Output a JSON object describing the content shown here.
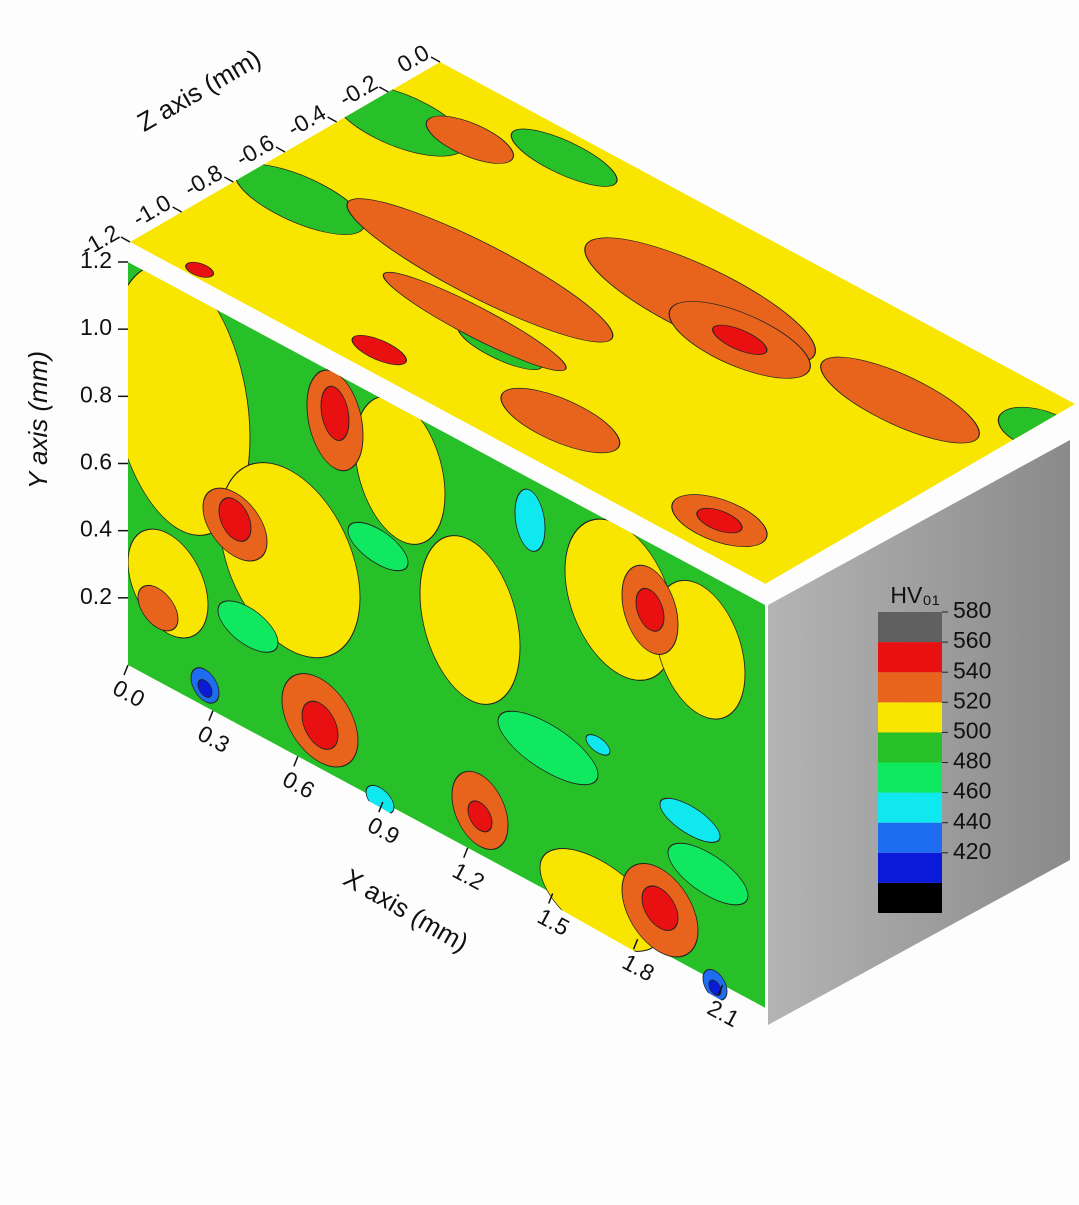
{
  "chart_data": {
    "type": "contour3d",
    "xlabel": "X axis (mm)",
    "ylabel": "Y axis (mm)",
    "zlabel": "Z axis (mm)",
    "xlim": [
      0,
      2.25
    ],
    "xticks": [
      {
        "value": 0,
        "label": "0.0"
      },
      0.3,
      0.6,
      0.9,
      1.2,
      1.5,
      1.8,
      2.1
    ],
    "ylim": [
      0,
      1.2
    ],
    "yticks": [
      0.2,
      0.4,
      0.6,
      0.8,
      {
        "value": 1,
        "label": "1.0"
      },
      1.2
    ],
    "zlim": [
      -1.2,
      0
    ],
    "zticks": [
      {
        "value": 0,
        "label": "0.0"
      },
      -0.2,
      -0.4,
      -0.6,
      -0.8,
      {
        "value": -1,
        "label": "-1.0"
      },
      -1.2
    ],
    "colorbar": {
      "title": "HV₀₁",
      "clim": [
        380,
        580
      ],
      "ticks": [
        580,
        560,
        540,
        520,
        500,
        480,
        460,
        440,
        420
      ],
      "colors": [
        "#000000",
        "#0a1ad8",
        "#1e6cf0",
        "#10e8f0",
        "#10e860",
        "#28c028",
        "#f8e600",
        "#e8641c",
        "#e81010",
        "#606060"
      ]
    }
  }
}
